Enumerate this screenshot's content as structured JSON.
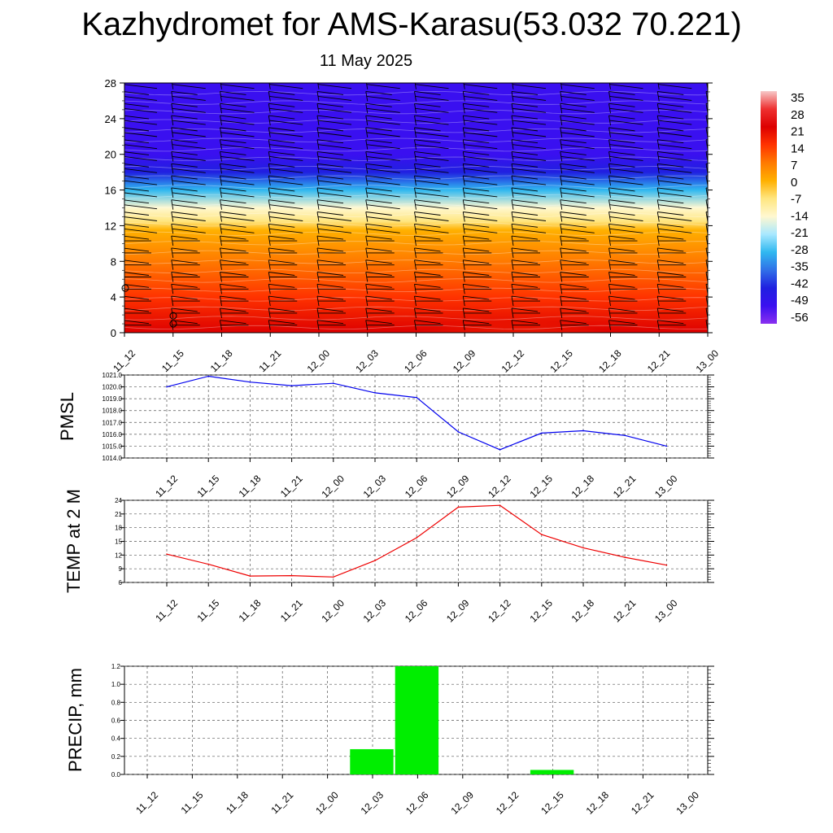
{
  "title": "Kazhydromet for AMS-Karasu(53.032 70.221)",
  "subtitle": "11 May 2025",
  "time_labels": [
    "11_12",
    "11_15",
    "11_18",
    "11_21",
    "12_00",
    "12_03",
    "12_06",
    "12_09",
    "12_12",
    "12_15",
    "12_18",
    "12_21",
    "13_00"
  ],
  "colorbar": {
    "labels": [
      "35",
      "28",
      "21",
      "14",
      "7",
      "0",
      "-7",
      "-14",
      "-21",
      "-28",
      "-35",
      "-42",
      "-49",
      "-56"
    ],
    "colors": [
      "#f7c8c8",
      "#ee3030",
      "#dd0000",
      "#ff3300",
      "#ff7a00",
      "#ffb000",
      "#ffe680",
      "#fff8d0",
      "#a8e8ff",
      "#30b8f0",
      "#3070e8",
      "#2020e0",
      "#3a10f0",
      "#8a30f0"
    ]
  },
  "chart_data": [
    {
      "type": "heatmap",
      "description_label": "",
      "x": [
        "11_12",
        "11_15",
        "11_18",
        "11_21",
        "12_00",
        "12_03",
        "12_06",
        "12_09",
        "12_12",
        "12_15",
        "12_18",
        "12_21",
        "13_00"
      ],
      "y_ticks": [
        0,
        4,
        8,
        12,
        16,
        20,
        24,
        28
      ],
      "ylim": [
        0,
        28
      ],
      "levels_temp": [
        {
          "y": 0,
          "value": 14
        },
        {
          "y": 4,
          "value": 10
        },
        {
          "y": 8,
          "value": 2
        },
        {
          "y": 11.5,
          "value": -7
        },
        {
          "y": 12.5,
          "value": -14
        },
        {
          "y": 14,
          "value": -21
        },
        {
          "y": 16,
          "value": -35
        },
        {
          "y": 18,
          "value": -49
        },
        {
          "y": 20,
          "value": -56
        },
        {
          "y": 28,
          "value": -56
        }
      ],
      "warm_core": {
        "x_center": "12_12",
        "value": 21
      }
    },
    {
      "type": "line",
      "ylabel": "PMSL",
      "x": [
        "11_12",
        "11_15",
        "11_18",
        "11_21",
        "12_00",
        "12_03",
        "12_06",
        "12_09",
        "12_12",
        "12_15",
        "12_18",
        "12_21",
        "13_00"
      ],
      "series": [
        {
          "values": [
            1020.0,
            1020.9,
            1020.4,
            1020.1,
            1020.3,
            1019.5,
            1019.1,
            1016.2,
            1014.7,
            1016.1,
            1016.3,
            1015.9,
            1015.0
          ]
        }
      ],
      "ylim": [
        1014.0,
        1021.0
      ],
      "y_ticks": [
        "1014.0",
        "1015.0",
        "1016.0",
        "1017.0",
        "1018.0",
        "1019.0",
        "1020.0",
        "1021.0"
      ],
      "color": "#0000ee"
    },
    {
      "type": "line",
      "ylabel": "TEMP at 2 M",
      "x": [
        "11_12",
        "11_15",
        "11_18",
        "11_21",
        "12_00",
        "12_03",
        "12_06",
        "12_09",
        "12_12",
        "12_15",
        "12_18",
        "12_21",
        "13_00"
      ],
      "series": [
        {
          "values": [
            12.2,
            10.0,
            7.4,
            7.5,
            7.2,
            10.8,
            15.8,
            22.5,
            22.9,
            16.5,
            13.6,
            11.5,
            9.8
          ]
        }
      ],
      "ylim": [
        6,
        24
      ],
      "y_ticks": [
        "6",
        "9",
        "12",
        "15",
        "18",
        "21",
        "24"
      ],
      "color": "#ee0000"
    },
    {
      "type": "bar",
      "ylabel": "PRECIP, mm",
      "x": [
        "11_12",
        "11_15",
        "11_18",
        "11_21",
        "12_00",
        "12_03",
        "12_06",
        "12_09",
        "12_12",
        "12_15",
        "12_18",
        "12_21",
        "13_00"
      ],
      "values": [
        0,
        0,
        0,
        0,
        0,
        0.28,
        1.2,
        0,
        0,
        0.05,
        0,
        0,
        0
      ],
      "ylim": [
        0.0,
        1.2
      ],
      "y_ticks": [
        "0.0",
        "0.2",
        "0.4",
        "0.6",
        "0.8",
        "1.0",
        "1.2"
      ],
      "color": "#00ee00"
    }
  ]
}
